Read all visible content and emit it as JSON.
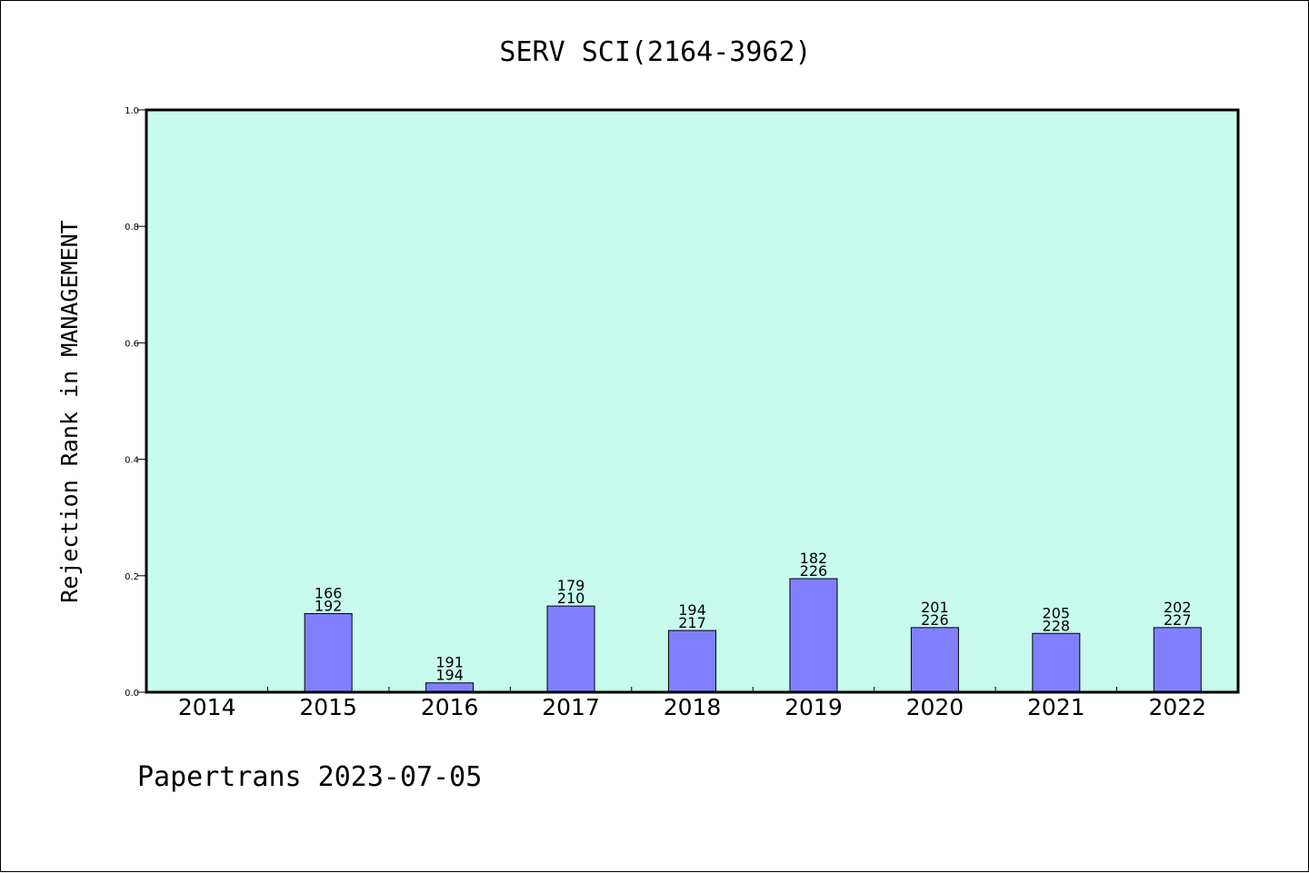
{
  "chart_data": {
    "type": "bar",
    "title": "SERV SCI(2164-3962)",
    "xlabel": "",
    "ylabel": "Rejection Rank in MANAGEMENT",
    "ylim": [
      0,
      1.0
    ],
    "yticks": [
      "0.0",
      "0.2",
      "0.4",
      "0.6",
      "0.8",
      "1.0"
    ],
    "grid": false,
    "categories": [
      "2014",
      "2015",
      "2016",
      "2017",
      "2018",
      "2019",
      "2020",
      "2021",
      "2022"
    ],
    "values": [
      null,
      0.135,
      0.016,
      0.148,
      0.106,
      0.195,
      0.111,
      0.101,
      0.111
    ],
    "labels_top": [
      "",
      "166",
      "191",
      "179",
      "194",
      "182",
      "201",
      "205",
      "202"
    ],
    "labels_bottom": [
      "",
      "192",
      "194",
      "210",
      "217",
      "226",
      "226",
      "228",
      "227"
    ],
    "colors": {
      "plot_bg": "#c8fbee",
      "bar": "#8080ff",
      "axis": "#000000"
    }
  },
  "footer": {
    "text": "Papertrans 2023-07-05"
  }
}
